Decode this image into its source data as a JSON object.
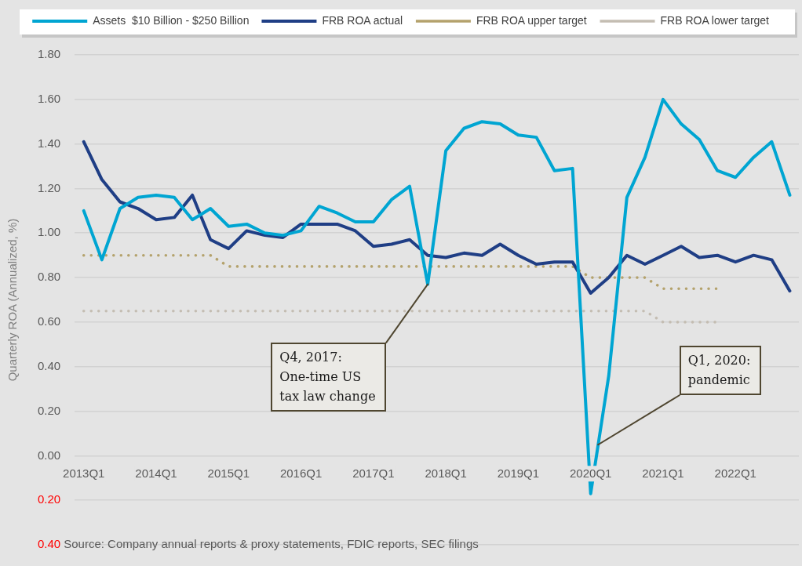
{
  "chart_data": {
    "type": "line",
    "ylabel": "Quarterly ROA (Annualized, %)",
    "x": [
      "2013-01",
      "2013-04",
      "2013-07",
      "2013-10",
      "2014-01",
      "2014-04",
      "2014-07",
      "2014-10",
      "2015-01",
      "2015-04",
      "2015-07",
      "2015-10",
      "2016-01",
      "2016-04",
      "2016-07",
      "2016-10",
      "2017-01",
      "2017-04",
      "2017-07",
      "2017-10",
      "2018-01",
      "2018-04",
      "2018-07",
      "2018-10",
      "2019-01",
      "2019-04",
      "2019-07",
      "2019-10",
      "2020-01",
      "2020-04",
      "2020-07",
      "2020-10",
      "2021-01",
      "2021-04",
      "2021-07",
      "2021-10",
      "2022-01",
      "2022-04",
      "2022-07",
      "2022-10"
    ],
    "series": [
      {
        "name": "Assets  $10 Billion - $250 Billion",
        "color": "#00a5d2",
        "line_style": "solid",
        "values": [
          1.1,
          0.88,
          1.11,
          1.16,
          1.17,
          1.16,
          1.06,
          1.11,
          1.03,
          1.04,
          1.0,
          0.99,
          1.01,
          1.12,
          1.09,
          1.05,
          1.05,
          1.15,
          1.21,
          0.77,
          1.37,
          1.47,
          1.5,
          1.49,
          1.44,
          1.43,
          1.28,
          1.29,
          -0.17,
          0.36,
          1.16,
          1.34,
          1.6,
          1.49,
          1.42,
          1.28,
          1.25,
          1.34,
          1.41,
          1.17
        ]
      },
      {
        "name": "FRB ROA actual",
        "color": "#1f3e85",
        "line_style": "solid",
        "values": [
          1.41,
          1.24,
          1.14,
          1.11,
          1.06,
          1.07,
          1.17,
          0.97,
          0.93,
          1.01,
          0.99,
          0.98,
          1.04,
          1.04,
          1.04,
          1.01,
          0.94,
          0.95,
          0.97,
          0.9,
          0.89,
          0.91,
          0.9,
          0.95,
          0.9,
          0.86,
          0.87,
          0.87,
          0.73,
          0.8,
          0.9,
          0.86,
          0.9,
          0.94,
          0.89,
          0.9,
          0.87,
          0.9,
          0.88,
          0.74
        ]
      },
      {
        "name": "FRB ROA upper target",
        "color": "#b4a26c",
        "line_style": "dotted",
        "values": [
          0.9,
          0.9,
          0.9,
          0.9,
          0.9,
          0.9,
          0.9,
          0.9,
          0.85,
          0.85,
          0.85,
          0.85,
          0.85,
          0.85,
          0.85,
          0.85,
          0.85,
          0.85,
          0.85,
          0.85,
          0.85,
          0.85,
          0.85,
          0.85,
          0.85,
          0.85,
          0.85,
          0.85,
          0.8,
          0.8,
          0.8,
          0.8,
          0.75,
          0.75,
          0.75,
          0.75,
          null,
          null,
          null,
          null
        ]
      },
      {
        "name": "FRB ROA lower target",
        "color": "#c4bdb2",
        "line_style": "dotted",
        "values": [
          0.65,
          0.65,
          0.65,
          0.65,
          0.65,
          0.65,
          0.65,
          0.65,
          0.65,
          0.65,
          0.65,
          0.65,
          0.65,
          0.65,
          0.65,
          0.65,
          0.65,
          0.65,
          0.65,
          0.65,
          0.65,
          0.65,
          0.65,
          0.65,
          0.65,
          0.65,
          0.65,
          0.65,
          0.65,
          0.65,
          0.65,
          0.65,
          0.6,
          0.6,
          0.6,
          0.6,
          null,
          null,
          null,
          null
        ]
      }
    ],
    "xlim": [
      "2012-11-16",
      "2022-11-16"
    ],
    "xticks": [
      {
        "value": "2013-01",
        "label": "2013Q1"
      },
      {
        "value": "2014-01",
        "label": "2014Q1"
      },
      {
        "value": "2015-01",
        "label": "2015Q1"
      },
      {
        "value": "2016-01",
        "label": "2016Q1"
      },
      {
        "value": "2017-01",
        "label": "2017Q1"
      },
      {
        "value": "2018-01",
        "label": "2018Q1"
      },
      {
        "value": "2019-01",
        "label": "2019Q1"
      },
      {
        "value": "2020-01",
        "label": "2020Q1"
      },
      {
        "value": "2021-01",
        "label": "2021Q1"
      },
      {
        "value": "2022-01",
        "label": "2022Q1"
      }
    ],
    "ylim": [
      -0.4,
      1.8
    ],
    "yticks": [
      {
        "value": -0.4,
        "label": "0.40"
      },
      {
        "value": -0.2,
        "label": "0.20"
      },
      {
        "value": 0,
        "label": "0.00"
      },
      {
        "value": 0.2,
        "label": "0.20"
      },
      {
        "value": 0.4,
        "label": "0.40"
      },
      {
        "value": 0.6,
        "label": "0.60"
      },
      {
        "value": 0.8,
        "label": "0.80"
      },
      {
        "value": 1.0,
        "label": "1.00"
      },
      {
        "value": 1.2,
        "label": "1.20"
      },
      {
        "value": 1.4,
        "label": "1.40"
      },
      {
        "value": 1.6,
        "label": "1.60"
      },
      {
        "value": 1.8,
        "label": "1.80"
      }
    ],
    "grid": "y",
    "legend": "top",
    "marker": "none",
    "annotations": [
      {
        "text": "Q4, 2017:\nOne-time US\ntax law change",
        "x": "2017-10",
        "y": 0.77
      },
      {
        "text": "Q1, 2020:\npandemic",
        "x": "2020-02-08",
        "y": 0.05
      },
      "Source: Company annual reports & proxy statements, FDIC reports, SEC filings"
    ]
  }
}
